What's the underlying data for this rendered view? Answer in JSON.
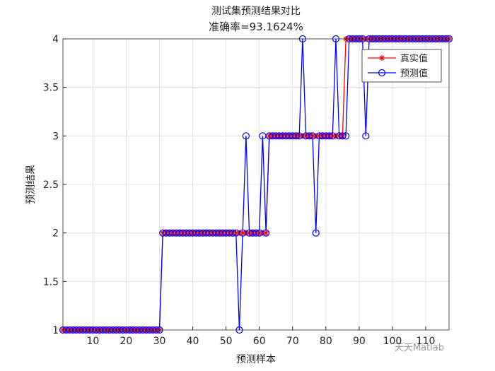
{
  "chart_data": {
    "type": "line",
    "title": "测试集预测结果对比",
    "subtitle": "准确率=93.1624%",
    "x_label": "预测样本",
    "y_label": "预测结果",
    "x": [
      1,
      2,
      3,
      4,
      5,
      6,
      7,
      8,
      9,
      10,
      11,
      12,
      13,
      14,
      15,
      16,
      17,
      18,
      19,
      20,
      21,
      22,
      23,
      24,
      25,
      26,
      27,
      28,
      29,
      30,
      31,
      32,
      33,
      34,
      35,
      36,
      37,
      38,
      39,
      40,
      41,
      42,
      43,
      44,
      45,
      46,
      47,
      48,
      49,
      50,
      51,
      52,
      53,
      54,
      55,
      56,
      57,
      58,
      59,
      60,
      61,
      62,
      63,
      64,
      65,
      66,
      67,
      68,
      69,
      70,
      71,
      72,
      73,
      74,
      75,
      76,
      77,
      78,
      79,
      80,
      81,
      82,
      83,
      84,
      85,
      86,
      87,
      88,
      89,
      90,
      91,
      92,
      93,
      94,
      95,
      96,
      97,
      98,
      99,
      100,
      101,
      102,
      103,
      104,
      105,
      106,
      107,
      108,
      109,
      110,
      111,
      112,
      113,
      114,
      115,
      116,
      117
    ],
    "series": [
      {
        "name": "真实值",
        "color": "#ff0000",
        "marker": "star",
        "values": [
          1,
          1,
          1,
          1,
          1,
          1,
          1,
          1,
          1,
          1,
          1,
          1,
          1,
          1,
          1,
          1,
          1,
          1,
          1,
          1,
          1,
          1,
          1,
          1,
          1,
          1,
          1,
          1,
          1,
          1,
          2,
          2,
          2,
          2,
          2,
          2,
          2,
          2,
          2,
          2,
          2,
          2,
          2,
          2,
          2,
          2,
          2,
          2,
          2,
          2,
          2,
          2,
          2,
          2,
          2,
          2,
          2,
          2,
          2,
          2,
          2,
          2,
          3,
          3,
          3,
          3,
          3,
          3,
          3,
          3,
          3,
          3,
          3,
          3,
          3,
          3,
          3,
          3,
          3,
          3,
          3,
          3,
          3,
          3,
          3,
          4,
          4,
          4,
          4,
          4,
          4,
          4,
          4,
          4,
          4,
          4,
          4,
          4,
          4,
          4,
          4,
          4,
          4,
          4,
          4,
          4,
          4,
          4,
          4,
          4,
          4,
          4,
          4,
          4,
          4,
          4,
          4
        ]
      },
      {
        "name": "预测值",
        "color": "#0000ff",
        "marker": "circle",
        "values": [
          1,
          1,
          1,
          1,
          1,
          1,
          1,
          1,
          1,
          1,
          1,
          1,
          1,
          1,
          1,
          1,
          1,
          1,
          1,
          1,
          1,
          1,
          1,
          1,
          1,
          1,
          1,
          1,
          1,
          1,
          2,
          2,
          2,
          2,
          2,
          2,
          2,
          2,
          2,
          2,
          2,
          2,
          2,
          2,
          2,
          2,
          2,
          2,
          2,
          2,
          2,
          2,
          2,
          1,
          2,
          3,
          2,
          2,
          2,
          2,
          3,
          2,
          3,
          3,
          3,
          3,
          3,
          3,
          3,
          3,
          3,
          3,
          4,
          3,
          3,
          3,
          2,
          3,
          3,
          3,
          3,
          3,
          4,
          3,
          3,
          3,
          4,
          4,
          4,
          4,
          4,
          3,
          4,
          4,
          4,
          4,
          4,
          4,
          4,
          4,
          4,
          4,
          4,
          4,
          4,
          4,
          4,
          4,
          4,
          4,
          4,
          4,
          4,
          4,
          4,
          4,
          4
        ]
      }
    ],
    "xlim": [
      1,
      117
    ],
    "ylim": [
      1,
      4
    ],
    "xticks": [
      10,
      20,
      30,
      40,
      50,
      60,
      70,
      80,
      90,
      100,
      110
    ],
    "yticks": [
      1,
      1.5,
      2,
      2.5,
      3,
      3.5,
      4
    ],
    "yticks_labels_note_free": null,
    "grid": true,
    "legend": "northeast",
    "watermark": "天天Matlab"
  }
}
